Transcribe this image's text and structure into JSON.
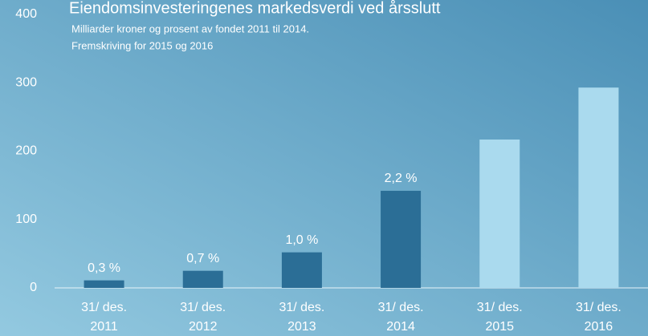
{
  "chart_data": {
    "type": "bar",
    "title": "Eiendomsinvesteringenes markedsverdi ved årsslutt",
    "subtitle": [
      "Milliarder kroner og prosent av fondet 2011 til 2014.",
      "Fremskriving for 2015 og 2016"
    ],
    "categories": [
      [
        "31/ des.",
        "2011"
      ],
      [
        "31/ des.",
        "2012"
      ],
      [
        "31/ des.",
        "2013"
      ],
      [
        "31/ des.",
        "2014"
      ],
      [
        "31/ des.",
        "2015"
      ],
      [
        "31/ des.",
        "2016"
      ]
    ],
    "values": [
      11,
      25,
      52,
      142,
      217,
      293
    ],
    "bar_labels": [
      "0,3 %",
      "0,7 %",
      "1,0 %",
      "2,2 %",
      null,
      null
    ],
    "colors": [
      "#2b6e96",
      "#2b6e96",
      "#2b6e96",
      "#2b6e96",
      "#aadaee",
      "#aadaee"
    ],
    "ylim": [
      0,
      400
    ],
    "yticks": [
      0,
      100,
      200,
      300,
      400
    ],
    "grid": false
  }
}
